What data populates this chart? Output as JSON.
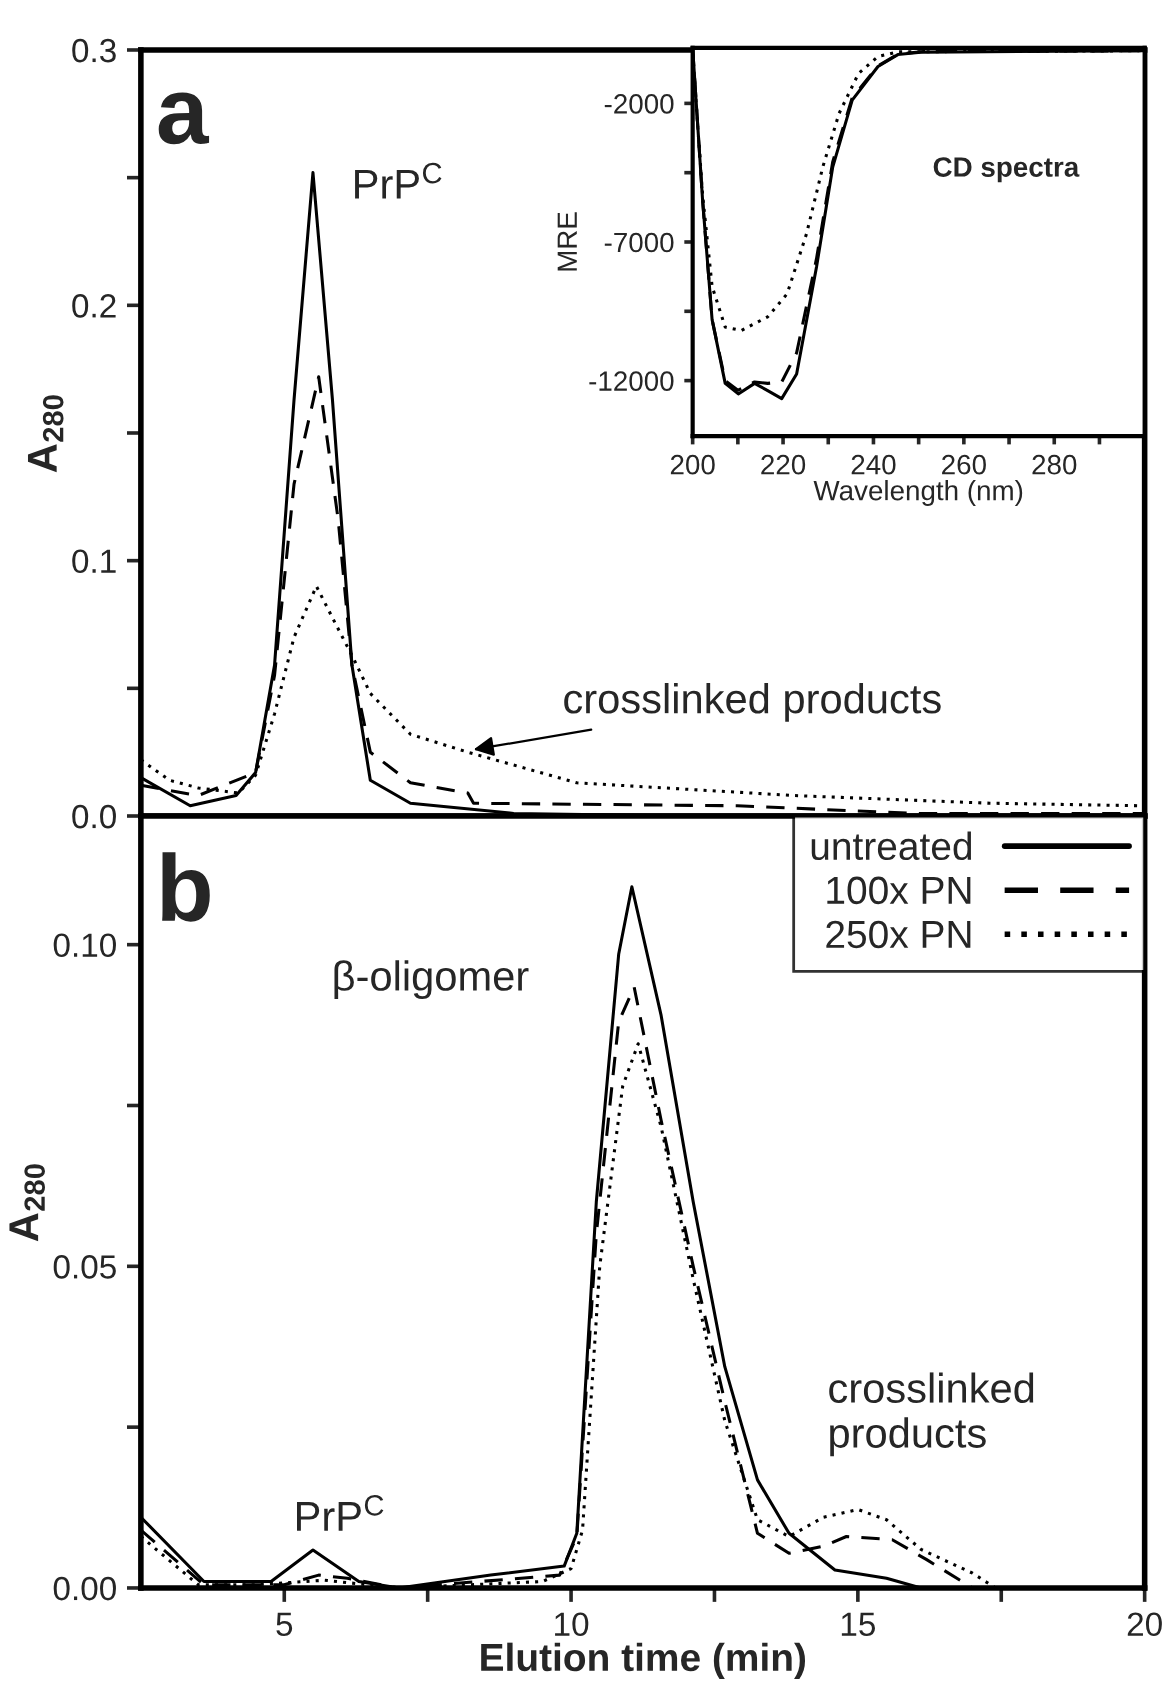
{
  "chart_data": [
    {
      "type": "line",
      "ylabel": "A$_{280}$",
      "xlim": [
        2.5,
        20
      ],
      "ylim": [
        0,
        0.3
      ],
      "xticks": [
        5,
        {
          "value": 7.5,
          "label": null
        },
        10,
        {
          "value": 12.5,
          "label": null
        },
        15,
        {
          "value": 17.5,
          "label": null
        },
        20
      ],
      "yticks": [
        {
          "value": 0,
          "label": "0.0"
        },
        {
          "value": 0.05,
          "label": null
        },
        0.1,
        {
          "value": 0.15,
          "label": null
        },
        0.2,
        {
          "value": 0.25,
          "label": null
        },
        0.3
      ],
      "tick_labels": "y",
      "annotations": [
        "a",
        "PrP$^{C}$",
        {
          "text": "crosslinked products",
          "x": 8.3,
          "y": 0.026
        }
      ],
      "series": [
        {
          "color": "#000000",
          "line_style": "solid",
          "x": [
            2.5,
            3.36,
            4.16,
            4.5,
            4.83,
            5.17,
            5.5,
            5.84,
            6.18,
            6.5,
            7.2,
            9,
            12,
            20
          ],
          "values": [
            0.015,
            0.004,
            0.008,
            0.017,
            0.059,
            0.163,
            0.252,
            0.163,
            0.059,
            0.014,
            0.005,
            0.001,
            0,
            0
          ]
        },
        {
          "color": "#000000",
          "line_style": "dashed",
          "x": [
            2.5,
            3.5,
            4.5,
            4.83,
            5.17,
            5.6,
            5.94,
            6.18,
            6.5,
            7.2,
            8.2,
            8.3,
            12.9,
            16,
            20
          ],
          "values": [
            0.012,
            0.008,
            0.017,
            0.055,
            0.13,
            0.172,
            0.116,
            0.059,
            0.025,
            0.013,
            0.009,
            0.005,
            0.004,
            0.001,
            0.001
          ]
        },
        {
          "color": "#000000",
          "line_style": "dotted",
          "x": [
            2.5,
            3.0,
            3.5,
            4.2,
            4.5,
            4.83,
            5.17,
            5.56,
            5.9,
            6.2,
            6.5,
            7.2,
            8.2,
            10.1,
            13.9,
            17.3,
            20
          ],
          "values": [
            0.022,
            0.014,
            0.011,
            0.009,
            0.016,
            0.04,
            0.07,
            0.09,
            0.075,
            0.062,
            0.048,
            0.032,
            0.025,
            0.013,
            0.008,
            0.005,
            0.004
          ]
        }
      ]
    },
    {
      "type": "line",
      "xlabel": "Elution time (min)",
      "ylabel": "A$_{280}$",
      "xlim": [
        2.5,
        20
      ],
      "ylim": [
        0,
        0.12
      ],
      "xticks": [
        5,
        {
          "value": 7.5,
          "label": null
        },
        10,
        {
          "value": 12.5,
          "label": null
        },
        15,
        {
          "value": 17.5,
          "label": null
        },
        20
      ],
      "yticks": [
        {
          "value": 0,
          "label": "0.00"
        },
        {
          "value": 0.025,
          "label": null
        },
        {
          "value": 0.05,
          "label": "0.05"
        },
        {
          "value": 0.075,
          "label": null
        },
        {
          "value": 0.1,
          "label": "0.10"
        }
      ],
      "legend": "top right",
      "annotations": [
        "b",
        "β-oligomer",
        "PrP$^{C}$",
        "crosslinked\nproducts"
      ],
      "series": [
        {
          "name": "untreated",
          "color": "#000000",
          "line_style": "solid",
          "x": [
            2.5,
            3.6,
            4.77,
            5.5,
            6.3,
            7,
            8.6,
            9.88,
            10.1,
            10.44,
            10.83,
            11.06,
            11.57,
            12.13,
            12.68,
            13.25,
            13.8,
            14.6,
            15.5,
            16.1,
            20
          ],
          "values": [
            0.011,
            0.001,
            0.001,
            0.0059,
            0.001,
            0,
            0.002,
            0.0034,
            0.0085,
            0.06,
            0.0985,
            0.109,
            0.089,
            0.06,
            0.0344,
            0.0168,
            0.0085,
            0.0028,
            0.0015,
            0,
            0
          ]
        },
        {
          "name": "100x PN",
          "color": "#000000",
          "line_style": "dashed",
          "x": [
            2.5,
            3.6,
            5.0,
            5.6,
            6.1,
            7,
            9.8,
            10.1,
            10.44,
            10.83,
            11.1,
            11.57,
            12.13,
            12.68,
            13.25,
            13.8,
            14.4,
            14.8,
            15.6,
            16.2,
            17.0,
            20
          ],
          "values": [
            0.009,
            0.0005,
            0.0005,
            0.002,
            0.0015,
            0,
            0.002,
            0.008,
            0.055,
            0.088,
            0.0934,
            0.0727,
            0.05,
            0.029,
            0.0085,
            0.0054,
            0.0065,
            0.008,
            0.0075,
            0.0044,
            0,
            0
          ]
        },
        {
          "name": "250x PN",
          "color": "#000000",
          "line_style": "dotted",
          "x": [
            2.5,
            3.5,
            4.5,
            5.7,
            7,
            9.5,
            10.0,
            10.2,
            10.5,
            10.9,
            11.17,
            11.57,
            12.13,
            12.68,
            13.25,
            13.8,
            14.4,
            15.0,
            15.5,
            16.1,
            17.0,
            17.4,
            20
          ],
          "values": [
            0.008,
            0.0005,
            0.0005,
            0.0012,
            0,
            0.001,
            0.003,
            0.009,
            0.05,
            0.078,
            0.0846,
            0.0717,
            0.048,
            0.026,
            0.0106,
            0.008,
            0.011,
            0.0122,
            0.0106,
            0.006,
            0.0023,
            0,
            0
          ]
        }
      ]
    },
    {
      "type": "line",
      "xlabel": "Wavelength (nm)",
      "ylabel": "MRE",
      "xlim": [
        200,
        300
      ],
      "ylim": [
        -14000,
        0
      ],
      "xticks": [
        200,
        {
          "value": 210,
          "label": null
        },
        220,
        {
          "value": 230,
          "label": null
        },
        240,
        {
          "value": 250,
          "label": null
        },
        260,
        {
          "value": 270,
          "label": null
        },
        280,
        {
          "value": 290,
          "label": null
        }
      ],
      "yticks": [
        -12000,
        {
          "value": -9500,
          "label": null
        },
        -7000,
        {
          "value": -4500,
          "label": null
        },
        -2000
      ],
      "annotations": [
        "CD spectra"
      ],
      "series": [
        {
          "color": "#000000",
          "line_style": "solid",
          "x": [
            200,
            202.2,
            204.3,
            207.2,
            210.1,
            213.7,
            216.6,
            219.7,
            223,
            227.4,
            231,
            235.3,
            241,
            245.4,
            251,
            300
          ],
          "values": [
            0,
            -5500,
            -9800,
            -12100,
            -12480,
            -12100,
            -12360,
            -12650,
            -11760,
            -7900,
            -4290,
            -1880,
            -670,
            -240,
            -150,
            -100
          ]
        },
        {
          "color": "#000000",
          "line_style": "dashed",
          "x": [
            200,
            202.2,
            204.3,
            207.2,
            210,
            213.7,
            216.6,
            219.7,
            223,
            227.4,
            231,
            235.3,
            241,
            245.4,
            251,
            300
          ],
          "values": [
            0,
            -5500,
            -9800,
            -12000,
            -12350,
            -12050,
            -12100,
            -12050,
            -11000,
            -7600,
            -4100,
            -1800,
            -650,
            -220,
            -130,
            -100
          ]
        },
        {
          "color": "#000000",
          "line_style": "dotted",
          "x": [
            200,
            202.2,
            204.3,
            207.2,
            210.8,
            216.6,
            220.9,
            225.2,
            228.8,
            232.4,
            236.7,
            241,
            245.4,
            300
          ],
          "values": [
            -200,
            -5300,
            -8600,
            -10070,
            -10190,
            -9700,
            -8870,
            -6700,
            -4290,
            -2360,
            -920,
            -310,
            -140,
            -100
          ]
        }
      ]
    }
  ]
}
